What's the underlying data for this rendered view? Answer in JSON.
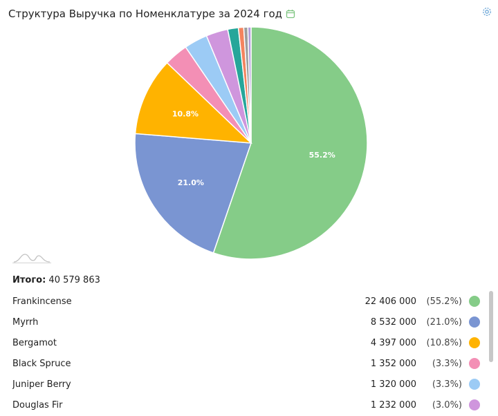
{
  "header": {
    "title": "Структура Выручка по Номенклатуре за 2024 год"
  },
  "icons": {
    "calendar": "calendar-icon",
    "settings": "gear-icon"
  },
  "summary": {
    "total_label": "Итого:",
    "total_value": "40 579 863"
  },
  "legend": [
    {
      "name": "Frankincense",
      "value": "22 406 000",
      "pct": "(55.2%)",
      "color": "#85cc88"
    },
    {
      "name": "Myrrh",
      "value": "8 532 000",
      "pct": "(21.0%)",
      "color": "#7a95d2"
    },
    {
      "name": "Bergamot",
      "value": "4 397 000",
      "pct": "(10.8%)",
      "color": "#ffb300"
    },
    {
      "name": "Black Spruce",
      "value": "1 352 000",
      "pct": "(3.3%)",
      "color": "#f38fb5"
    },
    {
      "name": "Juniper Berry",
      "value": "1 320 000",
      "pct": "(3.3%)",
      "color": "#9ccbf5"
    },
    {
      "name": "Douglas Fir",
      "value": "1 232 000",
      "pct": "(3.0%)",
      "color": "#cf96dd"
    }
  ],
  "chart_data": {
    "type": "pie",
    "title": "Структура Выручка по Номенклатуре за 2024 год",
    "slices": [
      {
        "name": "Frankincense",
        "value": 22406000,
        "label": "55.2%",
        "color": "#85cc88"
      },
      {
        "name": "Myrrh",
        "value": 8532000,
        "label": "21.0%",
        "color": "#7a95d2"
      },
      {
        "name": "Bergamot",
        "value": 4397000,
        "label": "10.8%",
        "color": "#ffb300"
      },
      {
        "name": "Black Spruce",
        "value": 1352000,
        "label": "",
        "color": "#f38fb5"
      },
      {
        "name": "Juniper Berry",
        "value": 1320000,
        "label": "",
        "color": "#9ccbf5"
      },
      {
        "name": "Douglas Fir",
        "value": 1232000,
        "label": "",
        "color": "#cf96dd"
      },
      {
        "name": "",
        "value": 600000,
        "label": "",
        "color": "#26a69a"
      },
      {
        "name": "",
        "value": 300000,
        "label": "",
        "color": "#f4845f"
      },
      {
        "name": "",
        "value": 230000,
        "label": "",
        "color": "#9e9e9e"
      },
      {
        "name": "",
        "value": 180000,
        "label": "",
        "color": "#b39ddb"
      }
    ]
  }
}
